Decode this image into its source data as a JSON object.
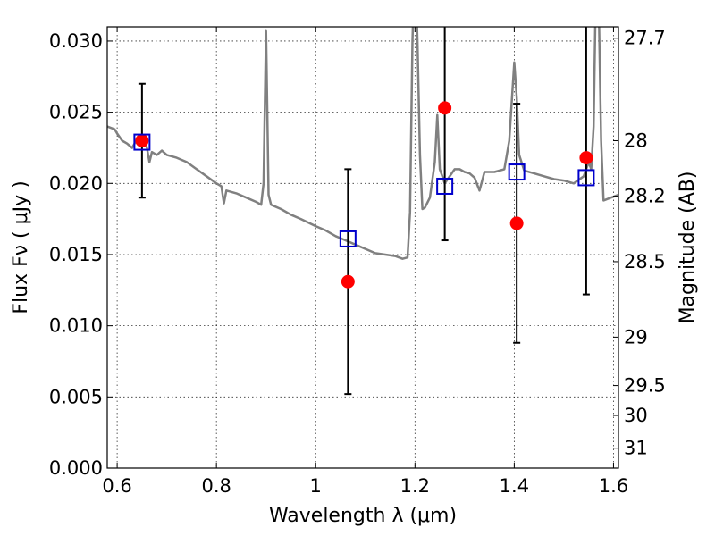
{
  "chart_data": {
    "type": "scatter",
    "xlabel": "Wavelength  λ (μm)",
    "ylabel": "Flux  Fν  ( μJy )",
    "ylabel2": "Magnitude (AB)",
    "xlim": [
      0.58,
      1.61
    ],
    "ylim": [
      0.0,
      0.031
    ],
    "grid": true,
    "x_ticks": [
      0.6,
      0.8,
      1.0,
      1.2,
      1.4,
      1.6
    ],
    "x_tick_labels": [
      "0.6",
      "0.8",
      "1",
      "1.2",
      "1.4",
      "1.6"
    ],
    "y_ticks": [
      0.0,
      0.005,
      0.01,
      0.015,
      0.02,
      0.025,
      0.03
    ],
    "y_tick_labels": [
      "0.000",
      "0.005",
      "0.010",
      "0.015",
      "0.020",
      "0.025",
      "0.030"
    ],
    "magnitude_ticks": [
      {
        "value": 27.7,
        "label": "27.7",
        "flux": 0.0302
      },
      {
        "value": 28,
        "label": "28",
        "flux": 0.023
      },
      {
        "value": 28.2,
        "label": "28.2",
        "flux": 0.0191
      },
      {
        "value": 28.5,
        "label": "28.5",
        "flux": 0.0145
      },
      {
        "value": 29,
        "label": "29",
        "flux": 0.0092
      },
      {
        "value": 29.5,
        "label": "29.5",
        "flux": 0.0058
      },
      {
        "value": 30,
        "label": "30",
        "flux": 0.0037
      },
      {
        "value": 31,
        "label": "31",
        "flux": 0.0014
      }
    ],
    "observed": [
      {
        "x": 0.65,
        "y": 0.023,
        "err": 0.004
      },
      {
        "x": 1.065,
        "y": 0.0131,
        "err": 0.0079
      },
      {
        "x": 1.26,
        "y": 0.0253,
        "err": 0.0093
      },
      {
        "x": 1.405,
        "y": 0.0172,
        "err": 0.0084
      },
      {
        "x": 1.545,
        "y": 0.0218,
        "err": 0.0096
      }
    ],
    "model_points": [
      {
        "x": 0.65,
        "y": 0.0229
      },
      {
        "x": 1.065,
        "y": 0.0161
      },
      {
        "x": 1.26,
        "y": 0.0198
      },
      {
        "x": 1.405,
        "y": 0.0208
      },
      {
        "x": 1.545,
        "y": 0.0204
      }
    ],
    "model_spectrum": [
      [
        0.58,
        0.024
      ],
      [
        0.595,
        0.0238
      ],
      [
        0.6,
        0.0235
      ],
      [
        0.61,
        0.023
      ],
      [
        0.62,
        0.0228
      ],
      [
        0.63,
        0.0225
      ],
      [
        0.64,
        0.0231
      ],
      [
        0.65,
        0.0232
      ],
      [
        0.655,
        0.0231
      ],
      [
        0.66,
        0.0225
      ],
      [
        0.665,
        0.0215
      ],
      [
        0.67,
        0.0222
      ],
      [
        0.68,
        0.022
      ],
      [
        0.69,
        0.0223
      ],
      [
        0.7,
        0.022
      ],
      [
        0.72,
        0.0218
      ],
      [
        0.74,
        0.0215
      ],
      [
        0.76,
        0.021
      ],
      [
        0.78,
        0.0205
      ],
      [
        0.8,
        0.02
      ],
      [
        0.81,
        0.0198
      ],
      [
        0.815,
        0.0186
      ],
      [
        0.82,
        0.0195
      ],
      [
        0.84,
        0.0193
      ],
      [
        0.86,
        0.019
      ],
      [
        0.88,
        0.0187
      ],
      [
        0.89,
        0.0185
      ],
      [
        0.895,
        0.02
      ],
      [
        0.9,
        0.0307
      ],
      [
        0.905,
        0.0192
      ],
      [
        0.91,
        0.0185
      ],
      [
        0.93,
        0.0182
      ],
      [
        0.95,
        0.0178
      ],
      [
        0.97,
        0.0175
      ],
      [
        1.0,
        0.017
      ],
      [
        1.02,
        0.0167
      ],
      [
        1.04,
        0.0163
      ],
      [
        1.06,
        0.016
      ],
      [
        1.08,
        0.0157
      ],
      [
        1.1,
        0.0154
      ],
      [
        1.12,
        0.0151
      ],
      [
        1.14,
        0.015
      ],
      [
        1.16,
        0.0149
      ],
      [
        1.175,
        0.0147
      ],
      [
        1.185,
        0.0148
      ],
      [
        1.19,
        0.018
      ],
      [
        1.195,
        0.03
      ],
      [
        1.2,
        0.036
      ],
      [
        1.205,
        0.03
      ],
      [
        1.21,
        0.022
      ],
      [
        1.215,
        0.0182
      ],
      [
        1.22,
        0.0183
      ],
      [
        1.23,
        0.019
      ],
      [
        1.24,
        0.0215
      ],
      [
        1.245,
        0.0248
      ],
      [
        1.25,
        0.021
      ],
      [
        1.255,
        0.0205
      ],
      [
        1.26,
        0.02
      ],
      [
        1.27,
        0.0205
      ],
      [
        1.28,
        0.021
      ],
      [
        1.29,
        0.021
      ],
      [
        1.3,
        0.0208
      ],
      [
        1.31,
        0.0207
      ],
      [
        1.32,
        0.0204
      ],
      [
        1.33,
        0.0195
      ],
      [
        1.34,
        0.0208
      ],
      [
        1.36,
        0.0208
      ],
      [
        1.38,
        0.021
      ],
      [
        1.39,
        0.023
      ],
      [
        1.4,
        0.0285
      ],
      [
        1.405,
        0.026
      ],
      [
        1.41,
        0.022
      ],
      [
        1.42,
        0.0209
      ],
      [
        1.44,
        0.0207
      ],
      [
        1.46,
        0.0205
      ],
      [
        1.48,
        0.0203
      ],
      [
        1.5,
        0.0202
      ],
      [
        1.52,
        0.02
      ],
      [
        1.54,
        0.0205
      ],
      [
        1.55,
        0.0215
      ],
      [
        1.555,
        0.021
      ],
      [
        1.56,
        0.024
      ],
      [
        1.565,
        0.035
      ],
      [
        1.57,
        0.033
      ],
      [
        1.575,
        0.023
      ],
      [
        1.58,
        0.0188
      ],
      [
        1.595,
        0.019
      ],
      [
        1.61,
        0.0192
      ]
    ],
    "colors": {
      "observed": "#ff0000",
      "model_points": "#0000cc",
      "model_spectrum": "#808080",
      "errorbar": "#000000"
    }
  }
}
